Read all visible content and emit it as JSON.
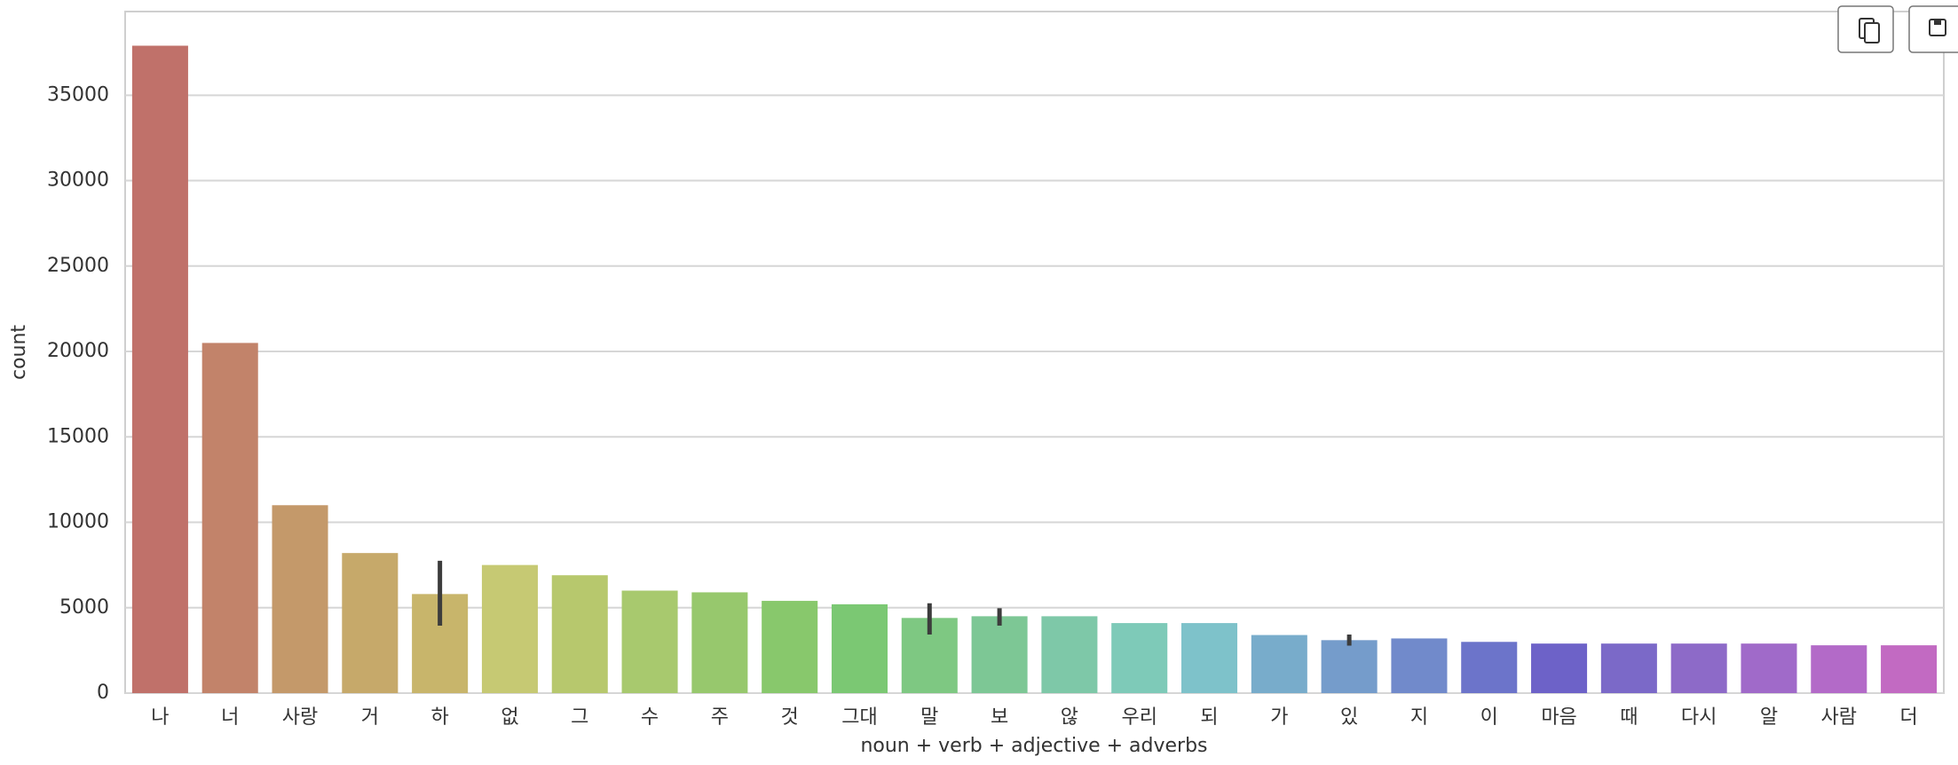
{
  "chart_data": {
    "type": "bar",
    "xlabel": "noun + verb + adjective + adverbs",
    "ylabel": "count",
    "categories": [
      "나",
      "너",
      "사랑",
      "거",
      "하",
      "없",
      "그",
      "수",
      "주",
      "것",
      "그대",
      "말",
      "보",
      "않",
      "우리",
      "되",
      "가",
      "있",
      "지",
      "이",
      "마음",
      "때",
      "다시",
      "알",
      "사람",
      "더"
    ],
    "values": [
      37900,
      20500,
      11000,
      8200,
      5800,
      7500,
      6900,
      6000,
      5900,
      5400,
      5200,
      4400,
      4500,
      4500,
      4100,
      4100,
      3400,
      3100,
      3200,
      3000,
      2900,
      2900,
      2900,
      2900,
      2800,
      2800
    ],
    "error_low": [
      null,
      null,
      null,
      null,
      3950,
      null,
      null,
      null,
      null,
      null,
      null,
      3430,
      3950,
      null,
      null,
      null,
      null,
      2780,
      null,
      null,
      null,
      null,
      null,
      null,
      null,
      null
    ],
    "error_high": [
      null,
      null,
      null,
      null,
      7750,
      null,
      null,
      null,
      null,
      null,
      null,
      5260,
      4970,
      null,
      null,
      null,
      null,
      3430,
      null,
      null,
      null,
      null,
      null,
      null,
      null,
      null
    ],
    "colors": [
      "#c0716a",
      "#c2836a",
      "#c4996a",
      "#c6a96a",
      "#c8b56b",
      "#c6c973",
      "#b7c86d",
      "#a8c96e",
      "#97c86d",
      "#88c86c",
      "#7bc873",
      "#7ec882",
      "#7dc795",
      "#7ec8a8",
      "#7ecab8",
      "#7ec2ca",
      "#78accb",
      "#759ccb",
      "#718acb",
      "#6c74ca",
      "#6d62c8",
      "#7b69c8",
      "#8d6ac8",
      "#a06ac9",
      "#b36ac8",
      "#c26ac2"
    ],
    "ylim": [
      0,
      39900
    ],
    "yticks": [
      0,
      5000,
      10000,
      15000,
      20000,
      25000,
      30000,
      35000
    ],
    "grid": true
  }
}
